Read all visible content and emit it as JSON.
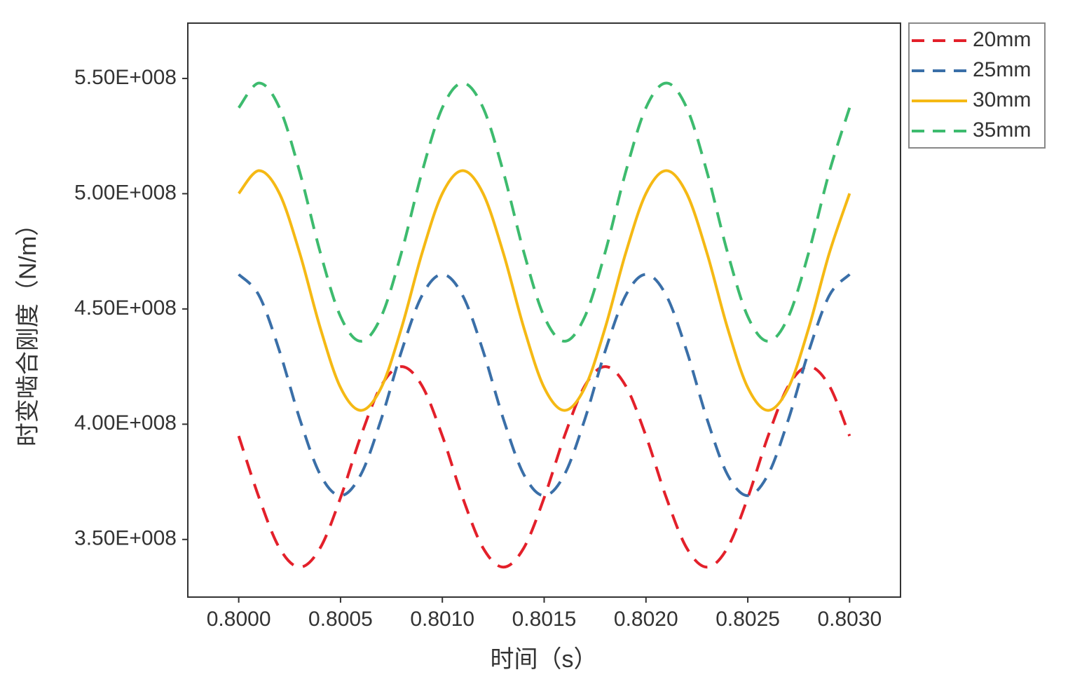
{
  "chart_data": {
    "type": "line",
    "x_label": "时间（s）",
    "y_label": "时变啮合刚度（N/m）",
    "x": [
      0.8,
      0.8001,
      0.8002,
      0.8003,
      0.8004,
      0.8005,
      0.8006,
      0.8007,
      0.8008,
      0.8009,
      0.801,
      0.8011,
      0.8012,
      0.8013,
      0.8014,
      0.8015,
      0.8016,
      0.8017,
      0.8018,
      0.8019,
      0.802,
      0.8021,
      0.8022,
      0.8023,
      0.8024,
      0.8025,
      0.8026,
      0.8027,
      0.8028,
      0.8029,
      0.803
    ],
    "series": [
      {
        "name": "20mm",
        "color": "#e3202a",
        "style": "dashed",
        "values": [
          394900000,
          368100000,
          346300000,
          338000000,
          346300000,
          368100000,
          394900000,
          416700000,
          425000000,
          416700000,
          394900000,
          368100000,
          346300000,
          338000000,
          346300000,
          368100000,
          394900000,
          416700000,
          425000000,
          416700000,
          394900000,
          368100000,
          346300000,
          338000000,
          346300000,
          368100000,
          394900000,
          416700000,
          425000000,
          416700000,
          394900000
        ]
      },
      {
        "name": "25mm",
        "color": "#3a6fa8",
        "style": "dashed",
        "values": [
          465000000,
          455800000,
          431800000,
          402200000,
          378200000,
          369000000,
          378200000,
          402200000,
          431800000,
          455800000,
          465000000,
          455800000,
          431800000,
          402200000,
          378200000,
          369000000,
          378200000,
          402200000,
          431800000,
          455800000,
          465000000,
          455800000,
          431800000,
          402200000,
          378200000,
          369000000,
          378200000,
          402200000,
          431800000,
          455800000,
          465000000
        ]
      },
      {
        "name": "30mm",
        "color": "#f5b914",
        "style": "solid",
        "values": [
          500100000,
          510000000,
          500100000,
          474100000,
          441900000,
          415900000,
          406000000,
          415900000,
          441900000,
          474100000,
          500100000,
          510000000,
          500100000,
          474100000,
          441900000,
          415900000,
          406000000,
          415900000,
          441900000,
          474100000,
          500100000,
          510000000,
          500100000,
          474100000,
          441900000,
          415900000,
          406000000,
          415900000,
          441900000,
          474100000,
          500100000
        ]
      },
      {
        "name": "35mm",
        "color": "#3dbb6e",
        "style": "dashed",
        "values": [
          537300000,
          548000000,
          537300000,
          509300000,
          474700000,
          446700000,
          436000000,
          446700000,
          474700000,
          509300000,
          537300000,
          548000000,
          537300000,
          509300000,
          474700000,
          446700000,
          436000000,
          446700000,
          474700000,
          509300000,
          537300000,
          548000000,
          537300000,
          509300000,
          474700000,
          446700000,
          436000000,
          446700000,
          474700000,
          509300000,
          537300000
        ]
      }
    ],
    "xlim": [
      0.79975,
      0.80325
    ],
    "xticks": [
      {
        "value": 0.8,
        "label": "0.8000"
      },
      {
        "value": 0.8005,
        "label": "0.8005"
      },
      {
        "value": 0.801,
        "label": "0.8010"
      },
      {
        "value": 0.8015,
        "label": "0.8015"
      },
      {
        "value": 0.802,
        "label": "0.8020"
      },
      {
        "value": 0.8025,
        "label": "0.8025"
      },
      {
        "value": 0.803,
        "label": "0.8030"
      }
    ],
    "ylim": [
      325000000,
      574000000
    ],
    "yticks": [
      {
        "value": 350000000,
        "label": "3.50E+008"
      },
      {
        "value": 400000000,
        "label": "4.00E+008"
      },
      {
        "value": 450000000,
        "label": "4.50E+008"
      },
      {
        "value": 500000000,
        "label": "5.00E+008"
      },
      {
        "value": 550000000,
        "label": "5.50E+008"
      }
    ],
    "legend": "outside-top-right",
    "grid": false
  }
}
